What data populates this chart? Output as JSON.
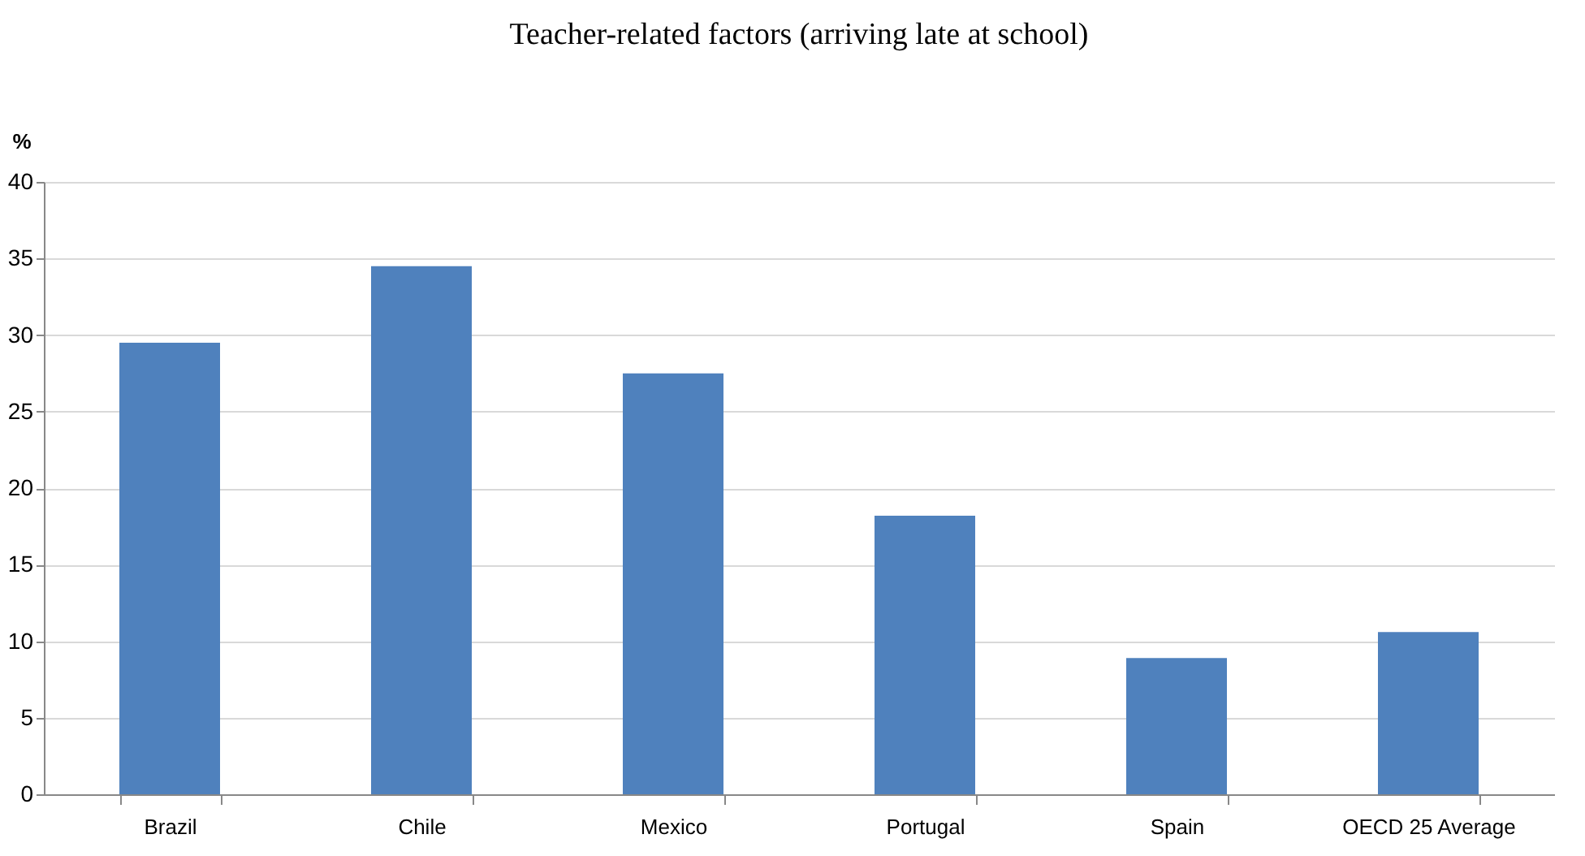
{
  "chart_data": {
    "type": "bar",
    "title": "Teacher-related factors (arriving late at school)",
    "ylabel": "%",
    "categories": [
      "Brazil",
      "Chile",
      "Mexico",
      "Portugal",
      "Spain",
      "OECD 25 Average"
    ],
    "values": [
      29.5,
      34.5,
      27.5,
      18.2,
      8.9,
      10.6
    ],
    "color": "#4f81bd",
    "ylim": [
      0,
      40
    ],
    "yticks": [
      0,
      5,
      10,
      15,
      20,
      25,
      30,
      35,
      40
    ],
    "grid": "y"
  }
}
